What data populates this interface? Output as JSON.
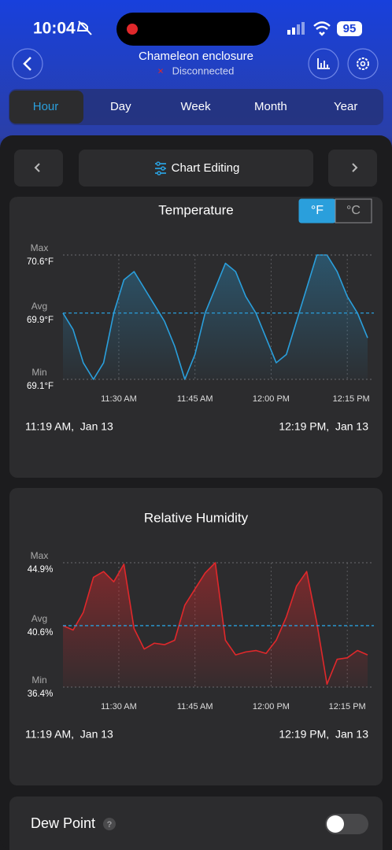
{
  "status_bar": {
    "time": "10:04",
    "battery": "95"
  },
  "header": {
    "title": "Chameleon enclosure",
    "status": "Disconnected"
  },
  "tabs": [
    "Hour",
    "Day",
    "Week",
    "Month",
    "Year"
  ],
  "selected_tab": 0,
  "toolbar": {
    "button": "Chart Editing"
  },
  "chart_data": [
    {
      "type": "line",
      "title": "Temperature",
      "unit_toggle": [
        "°F",
        "°C"
      ],
      "selected_unit": 0,
      "color": "#2a9fdc",
      "x": [
        "11:19 AM",
        "11:21 AM",
        "11:23 AM",
        "11:25 AM",
        "11:27 AM",
        "11:29 AM",
        "11:31 AM",
        "11:33 AM",
        "11:35 AM",
        "11:37 AM",
        "11:39 AM",
        "11:41 AM",
        "11:43 AM",
        "11:45 AM",
        "11:47 AM",
        "11:49 AM",
        "11:51 AM",
        "11:53 AM",
        "11:55 AM",
        "11:57 AM",
        "11:59 AM",
        "12:01 PM",
        "12:03 PM",
        "12:05 PM",
        "12:07 PM",
        "12:09 PM",
        "12:11 PM",
        "12:13 PM",
        "12:15 PM",
        "12:17 PM",
        "12:19 PM"
      ],
      "values": [
        69.9,
        69.7,
        69.3,
        69.1,
        69.3,
        69.9,
        70.3,
        70.4,
        70.2,
        70.0,
        69.8,
        69.5,
        69.1,
        69.4,
        69.9,
        70.2,
        70.5,
        70.4,
        70.1,
        69.9,
        69.6,
        69.3,
        69.4,
        69.8,
        70.2,
        70.6,
        70.6,
        70.4,
        70.1,
        69.9,
        69.6
      ],
      "xlim": [
        "11:19 AM",
        "12:19 PM"
      ],
      "xticks": [
        "11:30 AM",
        "11:45 AM",
        "12:00 PM",
        "12:15 PM"
      ],
      "ylim": [
        69.1,
        70.6
      ],
      "yticks": [
        {
          "value": 70.6,
          "label": "70.6°F"
        },
        {
          "value": 69.9,
          "label": "69.9°F"
        },
        {
          "value": 69.1,
          "label": "69.1°F"
        }
      ],
      "level_labels": [
        "Max",
        "Avg",
        "Min"
      ],
      "range_start": "11:19 AM,  Jan 13",
      "range_end": "12:19 PM,  Jan 13"
    },
    {
      "type": "line",
      "title": "Relative Humidity",
      "color": "#e0282b",
      "x": [
        "11:19 AM",
        "11:21 AM",
        "11:23 AM",
        "11:25 AM",
        "11:27 AM",
        "11:29 AM",
        "11:31 AM",
        "11:33 AM",
        "11:35 AM",
        "11:37 AM",
        "11:39 AM",
        "11:41 AM",
        "11:43 AM",
        "11:45 AM",
        "11:47 AM",
        "11:49 AM",
        "11:51 AM",
        "11:53 AM",
        "11:55 AM",
        "11:57 AM",
        "11:59 AM",
        "12:01 PM",
        "12:03 PM",
        "12:05 PM",
        "12:07 PM",
        "12:09 PM",
        "12:11 PM",
        "12:13 PM",
        "12:15 PM",
        "12:17 PM",
        "12:19 PM"
      ],
      "values": [
        40.6,
        40.3,
        41.5,
        43.9,
        44.3,
        43.6,
        44.8,
        40.4,
        39.0,
        39.4,
        39.3,
        39.6,
        42.0,
        43.1,
        44.2,
        44.9,
        39.6,
        38.6,
        38.8,
        38.9,
        38.7,
        39.6,
        41.2,
        43.3,
        44.3,
        40.8,
        36.6,
        38.3,
        38.4,
        38.9,
        38.6
      ],
      "xlim": [
        "11:19 AM",
        "12:19 PM"
      ],
      "xticks": [
        "11:30 AM",
        "11:45 AM",
        "12:00 PM",
        "12:15 PM"
      ],
      "ylim": [
        36.4,
        44.9
      ],
      "yticks": [
        {
          "value": 44.9,
          "label": "44.9%"
        },
        {
          "value": 40.6,
          "label": "40.6%"
        },
        {
          "value": 36.4,
          "label": "36.4%"
        }
      ],
      "level_labels": [
        "Max",
        "Avg",
        "Min"
      ],
      "range_start": "11:19 AM,  Jan 13",
      "range_end": "12:19 PM,  Jan 13"
    }
  ],
  "footer": {
    "label": "Dew Point",
    "toggle": false
  }
}
